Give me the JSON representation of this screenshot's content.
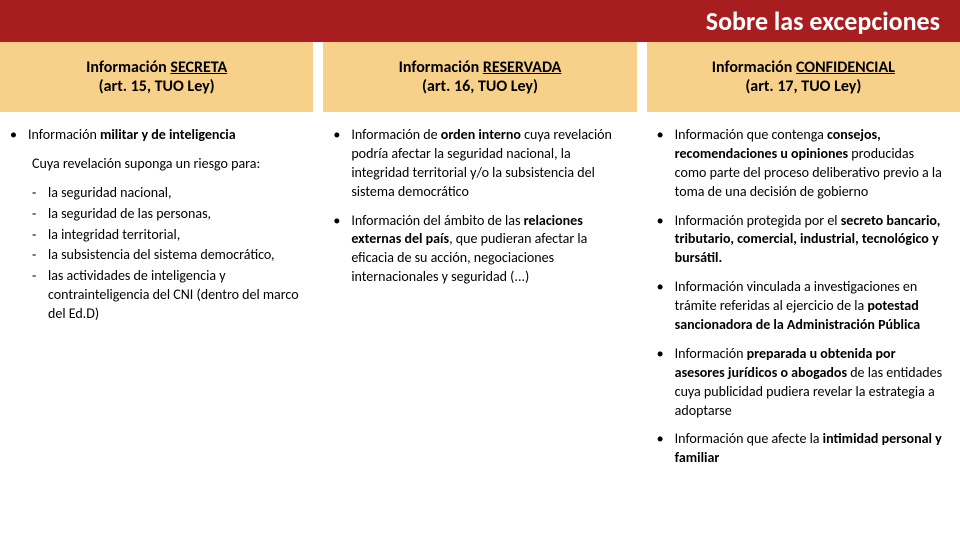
{
  "title": "Sobre las excepciones",
  "columns": [
    {
      "header_line1_pre": "Información ",
      "header_line1_u": "SECRETA",
      "header_line2": "(art. 15, TUO Ley)"
    },
    {
      "header_line1_pre": "Información ",
      "header_line1_u": "RESERVADA",
      "header_line2": "(art. 16, TUO Ley)"
    },
    {
      "header_line1_pre": "Información ",
      "header_line1_u": "CONFIDENCIAL",
      "header_line2": "(art. 17, TUO Ley)"
    }
  ],
  "col1": {
    "b1_pre": "Información ",
    "b1_bold": "militar y de inteligencia",
    "intro": "Cuya revelación suponga un riesgo para:",
    "d1": "la seguridad nacional,",
    "d2": "la seguridad de las personas,",
    "d3": "la integridad territorial,",
    "d4": "la subsistencia del sistema democrático,",
    "d5": "las actividades de inteligencia y contrainteligencia del CNI (dentro del marco del Ed.D)"
  },
  "col2": {
    "b1_pre": "Información de ",
    "b1_bold": "orden interno ",
    "b1_post": "cuya revelación podría afectar la seguridad nacional, la integridad territorial y/o la subsistencia del sistema democrático",
    "b2_pre": "Información del ámbito de las ",
    "b2_bold": "relaciones externas del país",
    "b2_post": ", que pudieran afectar la eficacia de su acción, negociaciones internacionales y seguridad (...)"
  },
  "col3": {
    "b1_pre": "Información que contenga ",
    "b1_bold": "consejos, recomendaciones u opiniones ",
    "b1_post": "producidas como parte del proceso deliberativo previo a la toma de una decisión de gobierno",
    "b2_pre": "Información protegida por el ",
    "b2_bold": "secreto bancario, tributario, comercial, industrial, tecnológico y bursátil.",
    "b3_pre": "Información vinculada a investigaciones en trámite referidas al ejercicio de la ",
    "b3_bold": "potestad sancionadora de la Administración Pública",
    "b4_pre": "Información ",
    "b4_bold": "preparada u obtenida por asesores jurídicos o abogados ",
    "b4_post": "de las entidades cuya publicidad pudiera revelar la estrategia a adoptarse",
    "b5_pre": "Información que afecte la ",
    "b5_bold": "intimidad personal y familiar"
  }
}
